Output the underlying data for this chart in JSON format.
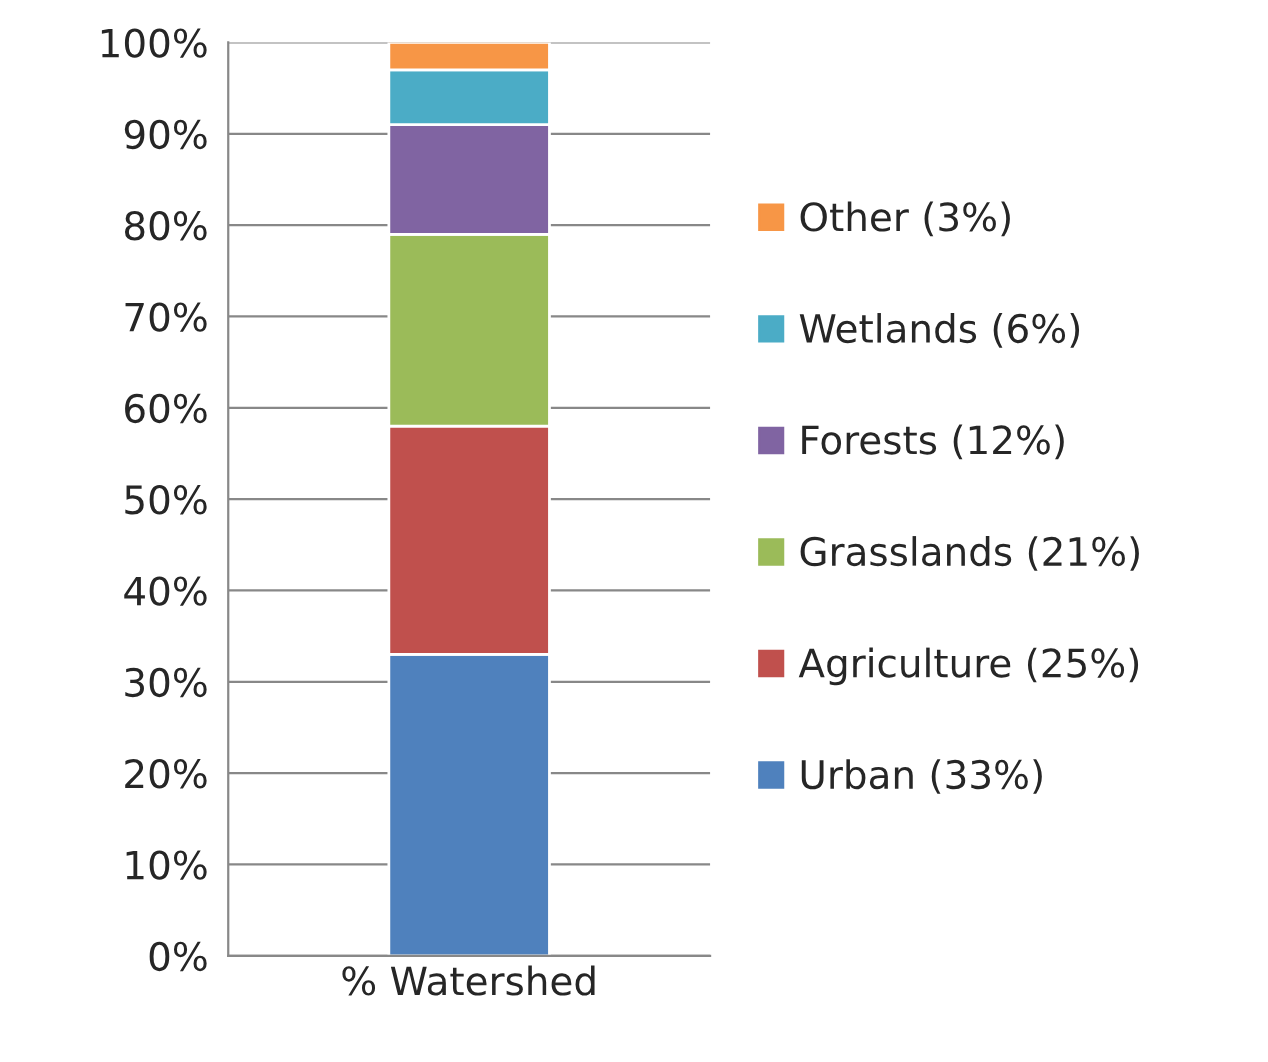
{
  "chart_data": {
    "type": "bar",
    "stacked": true,
    "categories": [
      "% Watershed"
    ],
    "series": [
      {
        "name": "Urban (33%)",
        "color": "#4f81bd",
        "values": [
          33
        ]
      },
      {
        "name": "Agriculture (25%)",
        "color": "#c0504d",
        "values": [
          25
        ]
      },
      {
        "name": "Grasslands (21%)",
        "color": "#9bbb59",
        "values": [
          21
        ]
      },
      {
        "name": "Forests (12%)",
        "color": "#8064a2",
        "values": [
          12
        ]
      },
      {
        "name": "Wetlands (6%)",
        "color": "#4bacc6",
        "values": [
          6
        ]
      },
      {
        "name": "Other (3%)",
        "color": "#f79646",
        "values": [
          3
        ]
      }
    ],
    "ylim": [
      0,
      100
    ],
    "yticks": [
      {
        "value": 0,
        "label": "0%"
      },
      {
        "value": 10,
        "label": "10%"
      },
      {
        "value": 20,
        "label": "20%"
      },
      {
        "value": 30,
        "label": "30%"
      },
      {
        "value": 40,
        "label": "40%"
      },
      {
        "value": 50,
        "label": "50%"
      },
      {
        "value": 60,
        "label": "60%"
      },
      {
        "value": 70,
        "label": "70%"
      },
      {
        "value": 80,
        "label": "80%"
      },
      {
        "value": 90,
        "label": "90%"
      },
      {
        "value": 100,
        "label": "100%"
      }
    ],
    "grid": "y",
    "legend": "right"
  }
}
